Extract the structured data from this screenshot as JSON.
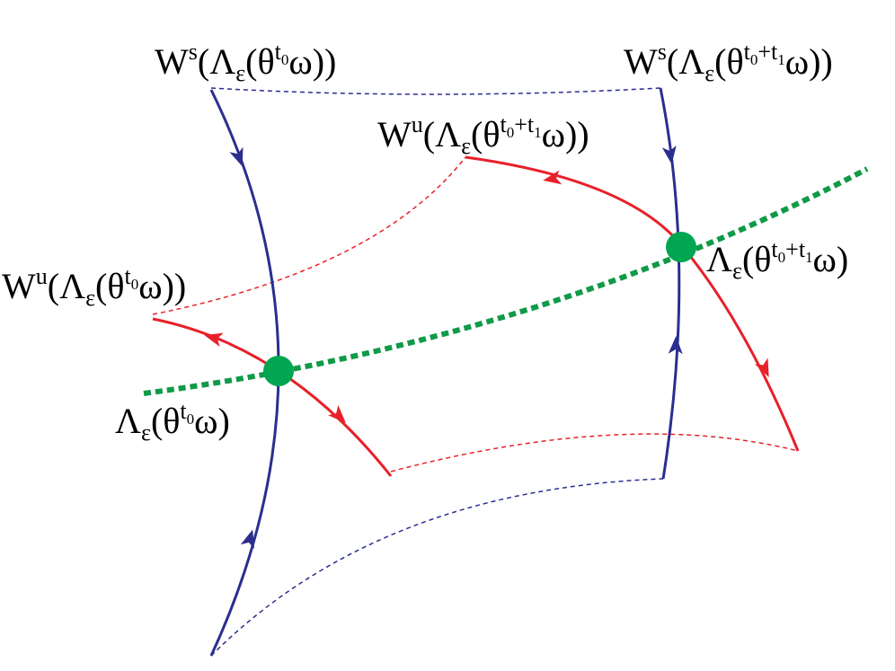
{
  "labels": [
    {
      "parts": [
        "W",
        "s",
        "(Λ",
        "ε",
        "(θ",
        "t",
        "0",
        "ω))"
      ]
    },
    {
      "parts": [
        "W",
        "s",
        "(Λ",
        "ε",
        "(θ",
        "t",
        "0",
        "+t",
        "1",
        "ω))"
      ]
    },
    {
      "parts": [
        "W",
        "u",
        "(Λ",
        "ε",
        "(θ",
        "t",
        "0",
        "+t",
        "1",
        "ω))"
      ]
    },
    {
      "parts": [
        "W",
        "u",
        "(Λ",
        "ε",
        "(θ",
        "t",
        "0",
        "ω))"
      ]
    },
    {
      "parts": [
        "Λ",
        "ε",
        "(θ",
        "t",
        "0",
        "ω)"
      ]
    },
    {
      "parts": [
        "Λ",
        "ε",
        "(θ",
        "t",
        "0",
        "+t",
        "1",
        "ω)"
      ]
    }
  ]
}
